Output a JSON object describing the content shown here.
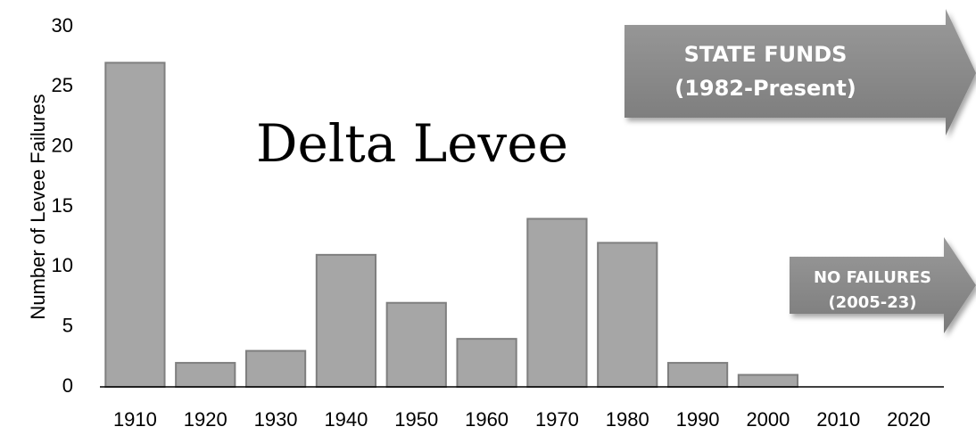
{
  "chart_data": {
    "type": "bar",
    "title": "Delta Levee",
    "y_label": "Number of Levee Failures",
    "categories": [
      "1910",
      "1920",
      "1930",
      "1940",
      "1950",
      "1960",
      "1970",
      "1980",
      "1990",
      "2000",
      "2010",
      "2020"
    ],
    "values": [
      27,
      2,
      3,
      11,
      7,
      4,
      14,
      12,
      2,
      1,
      0,
      0
    ],
    "color": "#a6a6a6",
    "ylim": [
      0,
      30
    ],
    "yticks": [
      0,
      5,
      10,
      15,
      20,
      25,
      30
    ],
    "grid": false,
    "annotations": [
      [
        "STATE FUNDS",
        "(1982-Present)"
      ],
      [
        "NO FAILURES",
        "(2005-23)"
      ]
    ]
  }
}
